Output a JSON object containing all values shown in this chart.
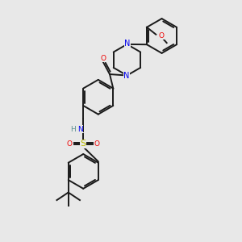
{
  "bg_color": "#e8e8e8",
  "bond_color": "#1a1a1a",
  "line_width": 1.4,
  "atom_colors": {
    "N": "#0000ee",
    "O": "#ee0000",
    "S": "#bbbb00",
    "H": "#5a9090"
  },
  "figsize": [
    3.0,
    3.0
  ],
  "dpi": 100
}
